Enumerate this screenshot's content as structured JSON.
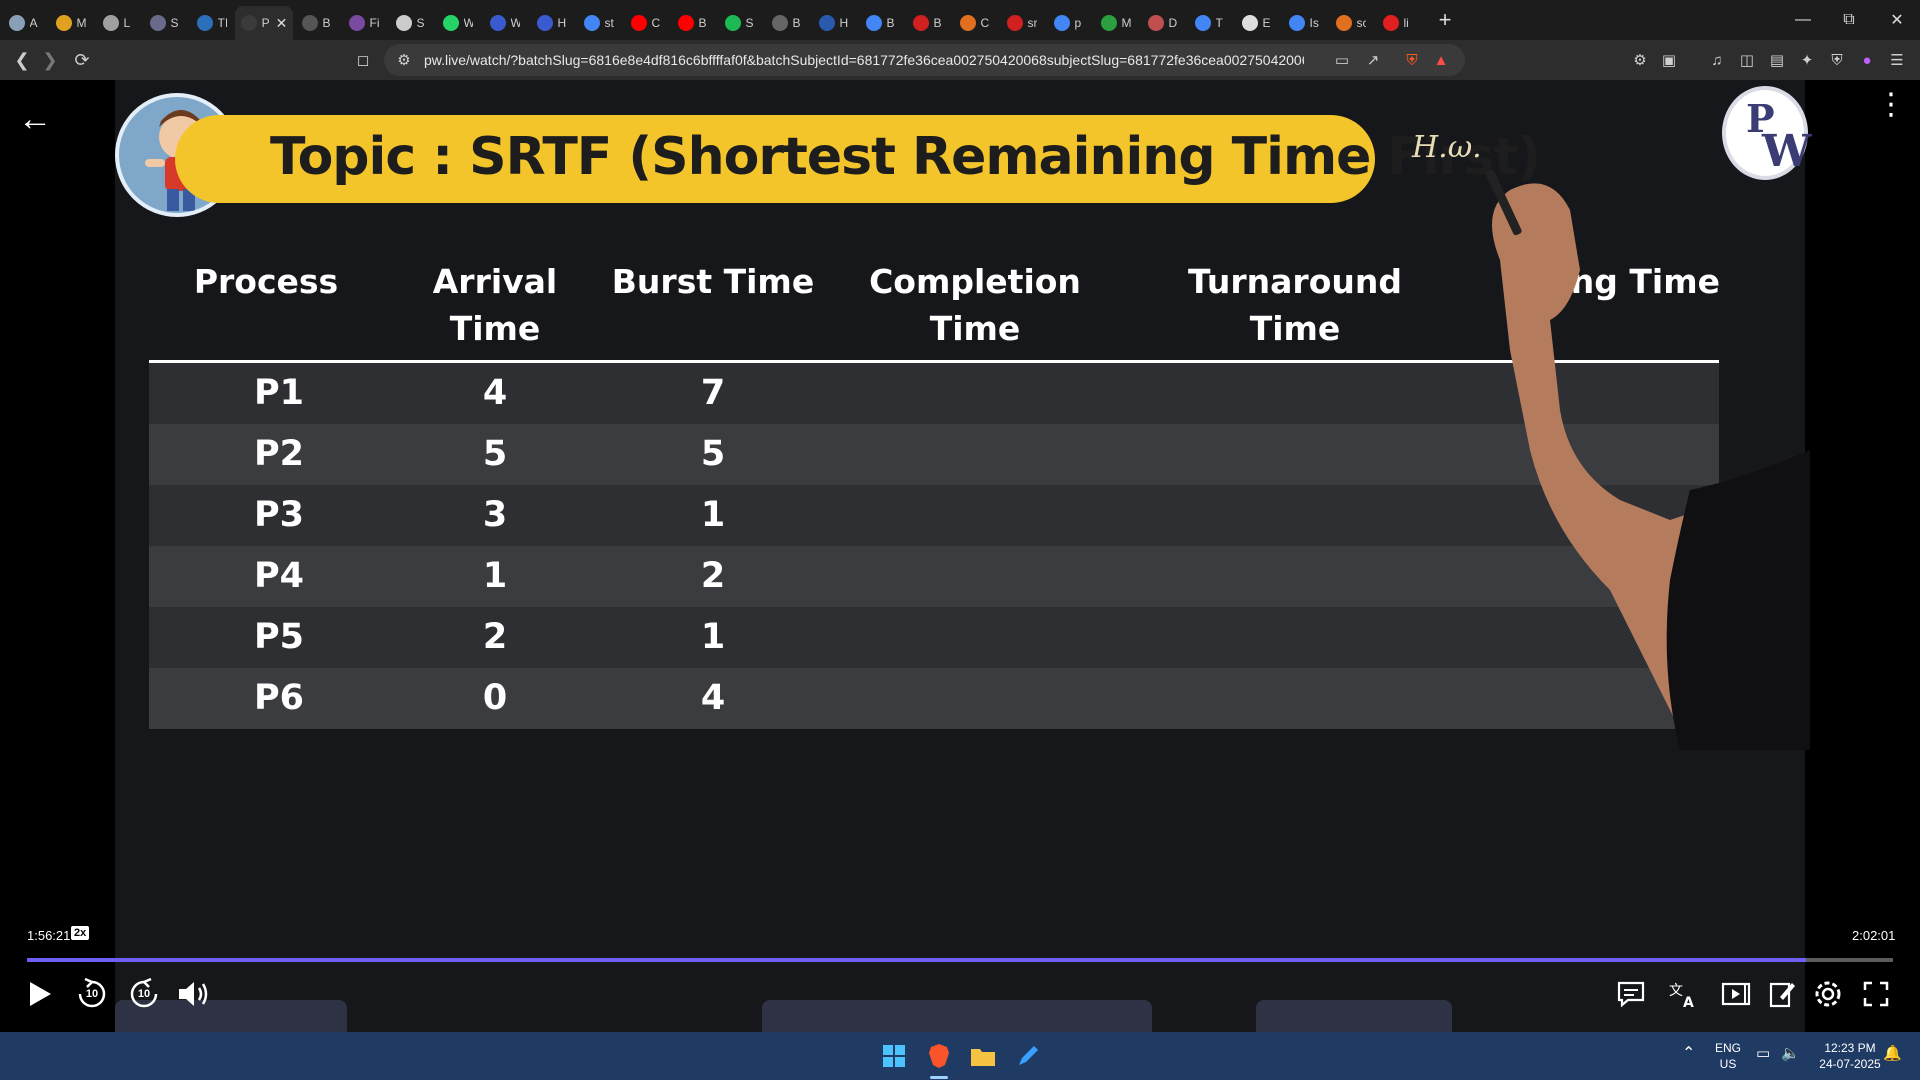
{
  "browser": {
    "tabs": [
      {
        "title": "A",
        "icon": "app-icon",
        "color": "#8aa0b8"
      },
      {
        "title": "M",
        "icon": "lambda-icon",
        "color": "#e0a020"
      },
      {
        "title": "L",
        "icon": "circle-logo-icon",
        "color": "#a0a0a0"
      },
      {
        "title": "S",
        "icon": "chip-icon",
        "color": "#6a6a8a"
      },
      {
        "title": "TI",
        "icon": "wordpress-icon",
        "color": "#2a6fb8"
      },
      {
        "title": "P",
        "icon": "pw-icon",
        "color": "#3a3a3a",
        "active": true
      },
      {
        "title": "B",
        "icon": "book-icon",
        "color": "#555555"
      },
      {
        "title": "Fi",
        "icon": "galaxy-icon",
        "color": "#7a4aa0"
      },
      {
        "title": "S",
        "icon": "target-icon",
        "color": "#cccccc"
      },
      {
        "title": "W",
        "icon": "whatsapp-icon",
        "color": "#25d366"
      },
      {
        "title": "W",
        "icon": "shield-icon",
        "color": "#3a5ad0"
      },
      {
        "title": "H",
        "icon": "shield-icon",
        "color": "#3a5ad0"
      },
      {
        "title": "st",
        "icon": "google-icon",
        "color": "#4285f4"
      },
      {
        "title": "C",
        "icon": "youtube-icon",
        "color": "#ff0000"
      },
      {
        "title": "B",
        "icon": "youtube-icon",
        "color": "#ff0000"
      },
      {
        "title": "S",
        "icon": "spotify-icon",
        "color": "#1db954"
      },
      {
        "title": "B",
        "icon": "nptel-icon",
        "color": "#666666"
      },
      {
        "title": "H",
        "icon": "f-logo-icon",
        "color": "#2a5ab0"
      },
      {
        "title": "B",
        "icon": "google-icon",
        "color": "#4285f4"
      },
      {
        "title": "B",
        "icon": "gfg-icon",
        "color": "#d02020"
      },
      {
        "title": "C",
        "icon": "stack-icon",
        "color": "#e07020"
      },
      {
        "title": "sr",
        "icon": "c-logo-icon",
        "color": "#d02020"
      },
      {
        "title": "p",
        "icon": "google-icon",
        "color": "#4285f4"
      },
      {
        "title": "M",
        "icon": "ring-icon",
        "color": "#2aa040"
      },
      {
        "title": "D",
        "icon": "gear-dark-icon",
        "color": "#c05050"
      },
      {
        "title": "T",
        "icon": "google-icon",
        "color": "#4285f4"
      },
      {
        "title": "E",
        "icon": "e-box-icon",
        "color": "#dddddd"
      },
      {
        "title": "Is",
        "icon": "google-icon",
        "color": "#4285f4"
      },
      {
        "title": "sc",
        "icon": "stack-icon",
        "color": "#e07020"
      },
      {
        "title": "li",
        "icon": "bug-icon",
        "color": "#e02020"
      }
    ],
    "url": "pw.live/watch/?batchSlug=6816e8e4df816c6bffffaf0f&batchSubjectId=681772fe36cea002750420068subjectSlug=681772fe36cea00275042006..."
  },
  "slide": {
    "title": "Topic : SRTF (Shortest Remaining Time First)",
    "handwriting": "H.ω.",
    "logo": {
      "line1": "P",
      "line2": "W"
    },
    "headers": [
      "Process",
      "Arrival Time",
      "Burst Time",
      "Completion Time",
      "Turnaround Time",
      "ting Time"
    ],
    "rows": [
      {
        "process": "P1",
        "arrival": "4",
        "burst": "7"
      },
      {
        "process": "P2",
        "arrival": "5",
        "burst": "5"
      },
      {
        "process": "P3",
        "arrival": "3",
        "burst": "1"
      },
      {
        "process": "P4",
        "arrival": "1",
        "burst": "2"
      },
      {
        "process": "P5",
        "arrival": "2",
        "burst": "1"
      },
      {
        "process": "P6",
        "arrival": "0",
        "burst": "4"
      }
    ]
  },
  "player": {
    "current_time": "1:56:21",
    "speed": "2x",
    "duration": "2:02:01",
    "progress": 0.9534,
    "rewind_label": "10",
    "forward_label": "10",
    "accent": "#6d5ff0"
  },
  "taskbar": {
    "lang_top": "ENG",
    "lang_bottom": "US",
    "time": "12:23 PM",
    "date": "24-07-2025"
  }
}
